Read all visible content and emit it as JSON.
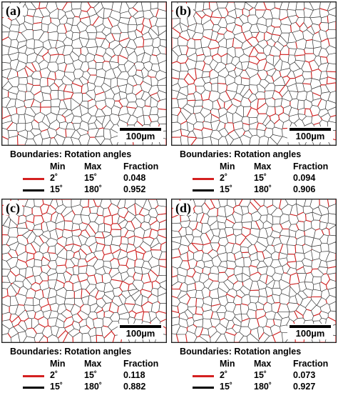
{
  "colors": {
    "high_angle": "#000000",
    "low_angle": "#d42020",
    "boundary_line": "#303030"
  },
  "panels": [
    {
      "label": "(a)",
      "scale_bar": "100µm",
      "legend": {
        "title": "Boundaries: Rotation angles",
        "min_header": "Min",
        "max_header": "Max",
        "fraction_header": "Fraction",
        "rows": [
          {
            "min": "2˚",
            "max": "15˚",
            "fraction": "0.048"
          },
          {
            "min": "15˚",
            "max": "180˚",
            "fraction": "0.952"
          }
        ]
      }
    },
    {
      "label": "(b)",
      "scale_bar": "100µm",
      "legend": {
        "title": "Boundaries: Rotation angles",
        "min_header": "Min",
        "max_header": "Max",
        "fraction_header": "Fraction",
        "rows": [
          {
            "min": "2˚",
            "max": "15˚",
            "fraction": "0.094"
          },
          {
            "min": "15˚",
            "max": "180˚",
            "fraction": "0.906"
          }
        ]
      }
    },
    {
      "label": "(c)",
      "scale_bar": "100µm",
      "legend": {
        "title": "Boundaries: Rotation angles",
        "min_header": "Min",
        "max_header": "Max",
        "fraction_header": "Fraction",
        "rows": [
          {
            "min": "2˚",
            "max": "15˚",
            "fraction": "0.118"
          },
          {
            "min": "15˚",
            "max": "180˚",
            "fraction": "0.882"
          }
        ]
      }
    },
    {
      "label": "(d)",
      "scale_bar": "100µm",
      "legend": {
        "title": "Boundaries: Rotation angles",
        "min_header": "Min",
        "max_header": "Max",
        "fraction_header": "Fraction",
        "rows": [
          {
            "min": "2˚",
            "max": "15˚",
            "fraction": "0.073"
          },
          {
            "min": "15˚",
            "max": "180˚",
            "fraction": "0.927"
          }
        ]
      }
    }
  ]
}
